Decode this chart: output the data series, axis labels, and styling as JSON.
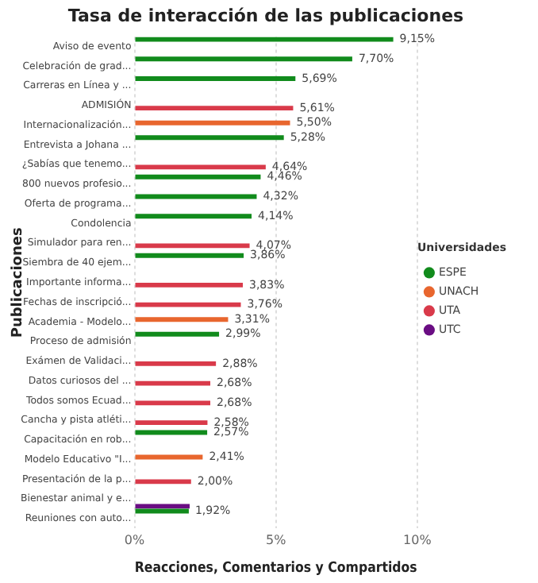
{
  "chart_data": {
    "type": "bar",
    "orientation": "horizontal",
    "title": "Tasa de interacción de las publicaciones",
    "xlabel": "Reacciones, Comentarios y Compartidos",
    "ylabel": "Publicaciones",
    "legend_title": "Universidades",
    "legend": "right",
    "grid": "x",
    "categories": [
      "Aviso de evento",
      "Celebración de grad...",
      "Carreras en Línea y ...",
      "ADMISIÓN",
      "Internacionalización...",
      "Entrevista a Johana ...",
      "¿Sabías que tenemo...",
      "800 nuevos profesio...",
      "Oferta de programa...",
      "Condolencia",
      "Simulador para ren...",
      "Siembra de 40 ejem...",
      "Importante informa...",
      "Fechas de inscripció...",
      "Academia - Modelo...",
      "Proceso de admisión",
      "Exámen de Validaci...",
      "Datos curiosos del ...",
      "Todos somos Ecuad...",
      "Cancha y pista atléti...",
      "Capacitación en rob...",
      "Modelo Educativo \"I...",
      "Presentación de la p...",
      "Bienestar animal y e...",
      "Reuniones con auto..."
    ],
    "xlim": [
      0,
      10
    ],
    "xticks": [
      {
        "value": 0,
        "label": "0%"
      },
      {
        "value": 5,
        "label": "5%"
      },
      {
        "value": 10,
        "label": "10%"
      }
    ],
    "series": [
      {
        "name": "ESPE",
        "color": "#118b1c",
        "values": [
          9.15,
          7.7,
          5.69,
          null,
          null,
          5.28,
          null,
          4.46,
          4.32,
          4.14,
          null,
          3.86,
          null,
          null,
          null,
          2.99,
          null,
          null,
          null,
          null,
          2.57,
          null,
          null,
          null,
          1.92
        ],
        "value_labels": [
          "9,15%",
          "7,70%",
          "5,69%",
          null,
          null,
          "5,28%",
          null,
          "4,46%",
          "4,32%",
          "4,14%",
          null,
          "3,86%",
          null,
          null,
          null,
          "2,99%",
          null,
          null,
          null,
          null,
          "2,57%",
          null,
          null,
          null,
          "1,92%"
        ]
      },
      {
        "name": "UNACH",
        "color": "#e8662e",
        "values": [
          null,
          null,
          null,
          null,
          5.5,
          null,
          null,
          null,
          null,
          null,
          null,
          null,
          null,
          null,
          3.31,
          null,
          null,
          null,
          null,
          null,
          null,
          2.41,
          null,
          null,
          null
        ],
        "value_labels": [
          null,
          null,
          null,
          null,
          "5,50%",
          null,
          null,
          null,
          null,
          null,
          null,
          null,
          null,
          null,
          "3,31%",
          null,
          null,
          null,
          null,
          null,
          null,
          "2,41%",
          null,
          null,
          null
        ]
      },
      {
        "name": "UTA",
        "color": "#d93a4a",
        "values": [
          null,
          null,
          null,
          5.61,
          null,
          null,
          4.64,
          null,
          null,
          null,
          4.07,
          null,
          3.83,
          3.76,
          null,
          null,
          2.88,
          2.68,
          2.68,
          2.58,
          null,
          null,
          2.0,
          null,
          null
        ],
        "value_labels": [
          null,
          null,
          null,
          "5,61%",
          null,
          null,
          "4,64%",
          null,
          null,
          null,
          "4,07%",
          null,
          "3,83%",
          "3,76%",
          null,
          null,
          "2,88%",
          "2,68%",
          "2,68%",
          "2,58%",
          null,
          null,
          "2,00%",
          null,
          null
        ]
      },
      {
        "name": "UTC",
        "color": "#6a0d83",
        "values": [
          null,
          null,
          null,
          null,
          null,
          null,
          null,
          null,
          null,
          null,
          null,
          null,
          null,
          null,
          null,
          null,
          null,
          null,
          null,
          null,
          null,
          null,
          null,
          1.95,
          null
        ]
      }
    ]
  }
}
